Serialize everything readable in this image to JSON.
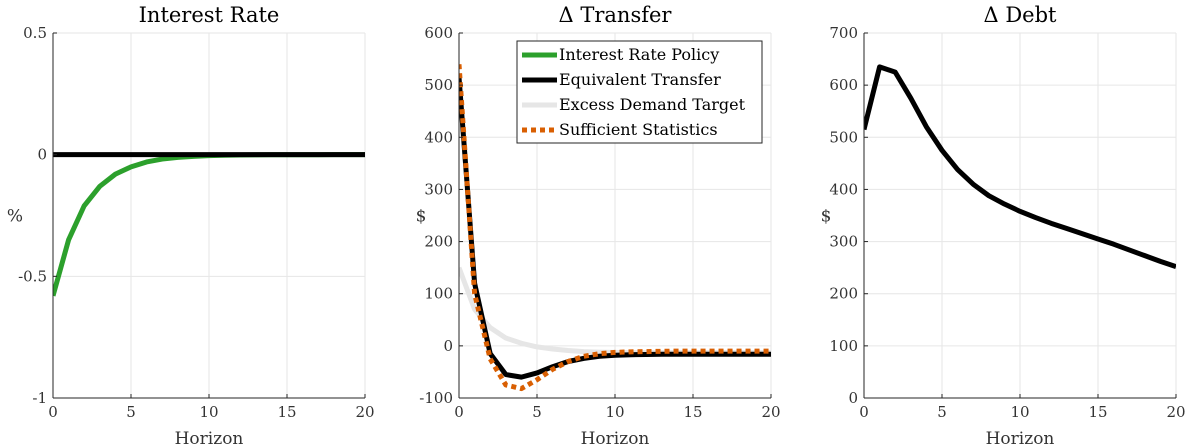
{
  "chart_data": [
    {
      "type": "line",
      "title": "Interest Rate",
      "xlabel": "Horizon",
      "ylabel": "%",
      "xlim": [
        0,
        20
      ],
      "ylim": [
        -1,
        0.5
      ],
      "xticks": [
        0,
        5,
        10,
        15,
        20
      ],
      "yticks": [
        -1,
        -0.5,
        0,
        0.5
      ],
      "xtick_labels": [
        "0",
        "5",
        "10",
        "15",
        "20"
      ],
      "ytick_labels": [
        "-1",
        "-0.5",
        "0",
        "0.5"
      ],
      "grid": true,
      "x": [
        0,
        1,
        2,
        3,
        4,
        5,
        6,
        7,
        8,
        9,
        10,
        11,
        12,
        13,
        14,
        15,
        16,
        17,
        18,
        19,
        20
      ],
      "series": [
        {
          "color": "#2ca02c",
          "width": 5,
          "dash": "",
          "values": [
            -0.58,
            -0.35,
            -0.21,
            -0.13,
            -0.08,
            -0.05,
            -0.03,
            -0.018,
            -0.011,
            -0.007,
            -0.004,
            -0.0025,
            -0.0015,
            -0.001,
            -0.0006,
            -0.0004,
            -0.0002,
            -0.0001,
            0,
            0,
            0
          ]
        },
        {
          "color": "#000000",
          "width": 5,
          "dash": "",
          "values": [
            0,
            0,
            0,
            0,
            0,
            0,
            0,
            0,
            0,
            0,
            0,
            0,
            0,
            0,
            0,
            0,
            0,
            0,
            0,
            0,
            0
          ]
        }
      ]
    },
    {
      "type": "line",
      "title": "Δ Transfer",
      "xlabel": "Horizon",
      "ylabel": "$",
      "xlim": [
        0,
        20
      ],
      "ylim": [
        -100,
        600
      ],
      "xticks": [
        0,
        5,
        10,
        15,
        20
      ],
      "yticks": [
        -100,
        0,
        100,
        200,
        300,
        400,
        500,
        600
      ],
      "xtick_labels": [
        "0",
        "5",
        "10",
        "15",
        "20"
      ],
      "ytick_labels": [
        "-100",
        "0",
        "100",
        "200",
        "300",
        "400",
        "500",
        "600"
      ],
      "grid": true,
      "legend": {
        "placement": "top-right",
        "entries": [
          "Interest Rate Policy",
          "Equivalent Transfer",
          "Excess Demand Target",
          "Sufficient Statistics"
        ]
      },
      "x": [
        0,
        1,
        2,
        3,
        4,
        5,
        6,
        7,
        8,
        9,
        10,
        11,
        12,
        13,
        14,
        15,
        16,
        17,
        18,
        19,
        20
      ],
      "series": [
        {
          "name": "Interest Rate Policy",
          "color": "#2ca02c",
          "width": 5,
          "dash": "",
          "values": null
        },
        {
          "name": "Excess Demand Target",
          "color": "#e6e6e6",
          "width": 5,
          "dash": "",
          "values": [
            150,
            70,
            35,
            15,
            5,
            -2,
            -6,
            -9,
            -11,
            -12,
            -12.5,
            -13,
            -13,
            -13,
            -13,
            -13,
            -13,
            -13,
            -13,
            -13,
            -13
          ]
        },
        {
          "name": "Equivalent Transfer",
          "color": "#000000",
          "width": 5,
          "dash": "",
          "values": [
            515,
            120,
            -15,
            -55,
            -60,
            -52,
            -40,
            -30,
            -24,
            -20,
            -18,
            -17,
            -16.5,
            -16,
            -16,
            -16,
            -16,
            -16,
            -16,
            -16,
            -16
          ]
        },
        {
          "name": "Sufficient Statistics",
          "color": "#d95f02",
          "width": 5,
          "dash": "5,4",
          "values": [
            540,
            100,
            -25,
            -75,
            -82,
            -65,
            -45,
            -30,
            -20,
            -15,
            -12.5,
            -11.5,
            -11,
            -10.5,
            -10,
            -10,
            -10,
            -10,
            -10,
            -10,
            -10
          ]
        }
      ]
    },
    {
      "type": "line",
      "title": "Δ Debt",
      "xlabel": "Horizon",
      "ylabel": "$",
      "xlim": [
        0,
        20
      ],
      "ylim": [
        0,
        700
      ],
      "xticks": [
        0,
        5,
        10,
        15,
        20
      ],
      "yticks": [
        0,
        100,
        200,
        300,
        400,
        500,
        600,
        700
      ],
      "xtick_labels": [
        "0",
        "5",
        "10",
        "15",
        "20"
      ],
      "ytick_labels": [
        "0",
        "100",
        "200",
        "300",
        "400",
        "500",
        "600",
        "700"
      ],
      "grid": true,
      "x": [
        0,
        1,
        2,
        3,
        4,
        5,
        6,
        7,
        8,
        9,
        10,
        11,
        12,
        13,
        14,
        15,
        16,
        17,
        18,
        19,
        20
      ],
      "series": [
        {
          "color": "#000000",
          "width": 5,
          "dash": "",
          "values": [
            515,
            635,
            625,
            575,
            520,
            475,
            438,
            410,
            388,
            372,
            358,
            346,
            335,
            325,
            315,
            305,
            295,
            284,
            273,
            262,
            252
          ]
        }
      ]
    }
  ]
}
